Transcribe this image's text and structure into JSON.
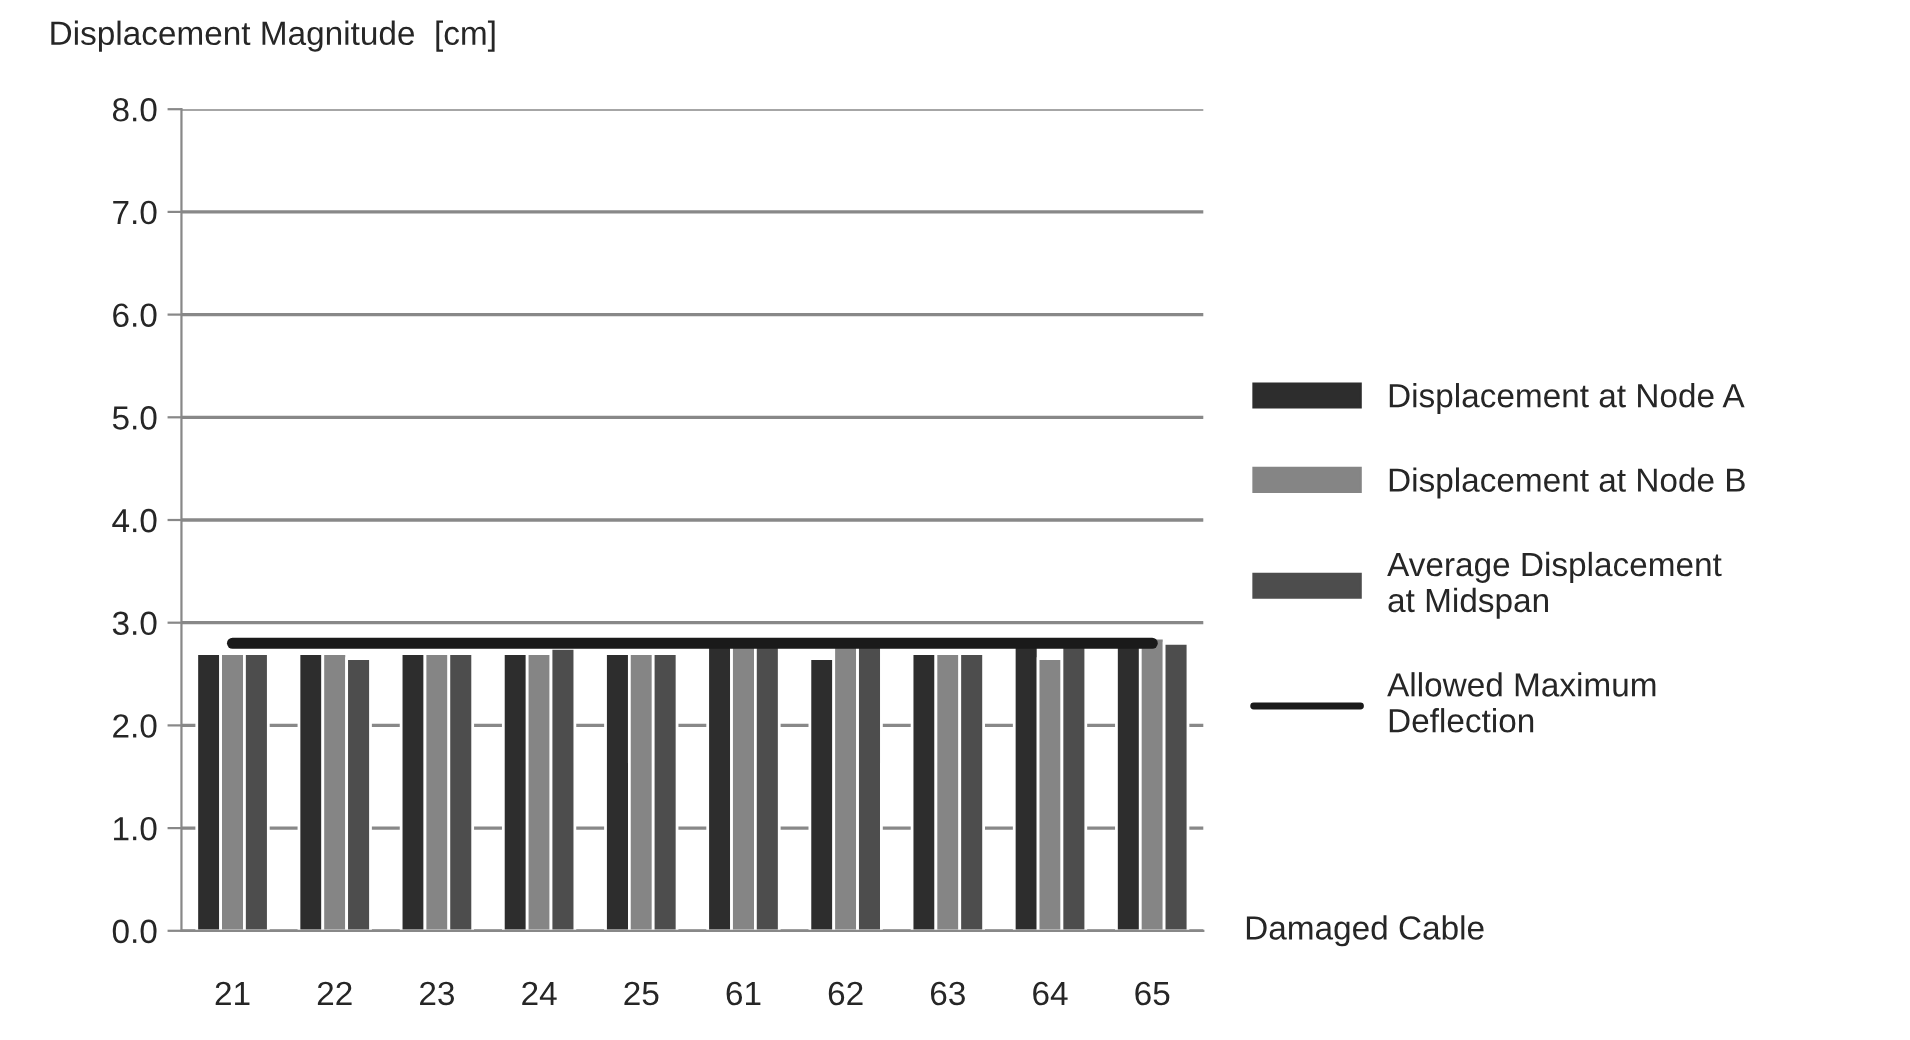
{
  "chart_data": {
    "type": "bar",
    "ylabel": "Displacement Magnitude  [cm]",
    "xlabel": "Damaged Cable",
    "categories": [
      "21",
      "22",
      "23",
      "24",
      "25",
      "61",
      "62",
      "63",
      "64",
      "65"
    ],
    "series": [
      {
        "name": "Displacement at Node A",
        "color": "#2d2d2d",
        "values": [
          2.7,
          2.7,
          2.7,
          2.7,
          2.7,
          2.8,
          2.65,
          2.7,
          2.8,
          2.8
        ]
      },
      {
        "name": "Displacement at Node B",
        "color": "#858585",
        "values": [
          2.7,
          2.7,
          2.7,
          2.7,
          2.7,
          2.8,
          2.8,
          2.7,
          2.65,
          2.85
        ]
      },
      {
        "name": "Average Displacement at Midspan",
        "color": "#4d4d4d",
        "values": [
          2.7,
          2.65,
          2.7,
          2.75,
          2.7,
          2.8,
          2.8,
          2.7,
          2.8,
          2.8
        ]
      },
      {
        "name": "Allowed Maximum Deflection",
        "type": "line",
        "color": "#1a1a1a",
        "values": [
          2.8,
          2.8,
          2.8,
          2.8,
          2.8,
          2.8,
          2.8,
          2.8,
          2.8,
          2.8
        ]
      }
    ],
    "ylim": [
      0,
      8
    ],
    "yticks": [
      {
        "value": 0,
        "label": "0.0"
      },
      {
        "value": 1,
        "label": "1.0"
      },
      {
        "value": 2,
        "label": "2.0"
      },
      {
        "value": 3,
        "label": "3.0"
      },
      {
        "value": 4,
        "label": "4.0"
      },
      {
        "value": 5,
        "label": "5.0"
      },
      {
        "value": 6,
        "label": "6.0"
      },
      {
        "value": 7,
        "label": "7.0"
      },
      {
        "value": 8,
        "label": "8.0"
      }
    ],
    "grid": "y",
    "legend": "right"
  }
}
